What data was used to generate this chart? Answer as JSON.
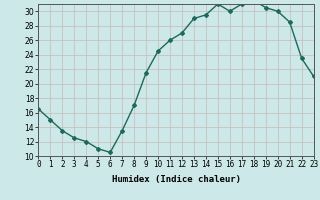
{
  "xlabel": "Humidex (Indice chaleur)",
  "x": [
    0,
    1,
    2,
    3,
    4,
    5,
    6,
    7,
    8,
    9,
    10,
    11,
    12,
    13,
    14,
    15,
    16,
    17,
    18,
    19,
    20,
    21,
    22,
    23
  ],
  "y": [
    16.5,
    15.0,
    13.5,
    12.5,
    12.0,
    11.0,
    10.5,
    13.5,
    17.0,
    21.5,
    24.5,
    26.0,
    27.0,
    29.0,
    29.5,
    31.0,
    30.0,
    31.0,
    31.5,
    30.5,
    30.0,
    28.5,
    23.5,
    21.0
  ],
  "line_color": "#1a6b5a",
  "marker": "D",
  "marker_size": 2.0,
  "bg_color": "#cce8e8",
  "grid_color": "#b0d0d0",
  "ylim": [
    10,
    31
  ],
  "xlim": [
    0,
    23
  ],
  "yticks": [
    10,
    12,
    14,
    16,
    18,
    20,
    22,
    24,
    26,
    28,
    30
  ],
  "xticks": [
    0,
    1,
    2,
    3,
    4,
    5,
    6,
    7,
    8,
    9,
    10,
    11,
    12,
    13,
    14,
    15,
    16,
    17,
    18,
    19,
    20,
    21,
    22,
    23
  ],
  "xtick_labels": [
    "0",
    "1",
    "2",
    "3",
    "4",
    "5",
    "6",
    "7",
    "8",
    "9",
    "10",
    "11",
    "12",
    "13",
    "14",
    "15",
    "16",
    "17",
    "18",
    "19",
    "20",
    "21",
    "22",
    "23"
  ],
  "tick_fontsize": 5.5,
  "xlabel_fontsize": 6.5,
  "line_width": 1.0
}
